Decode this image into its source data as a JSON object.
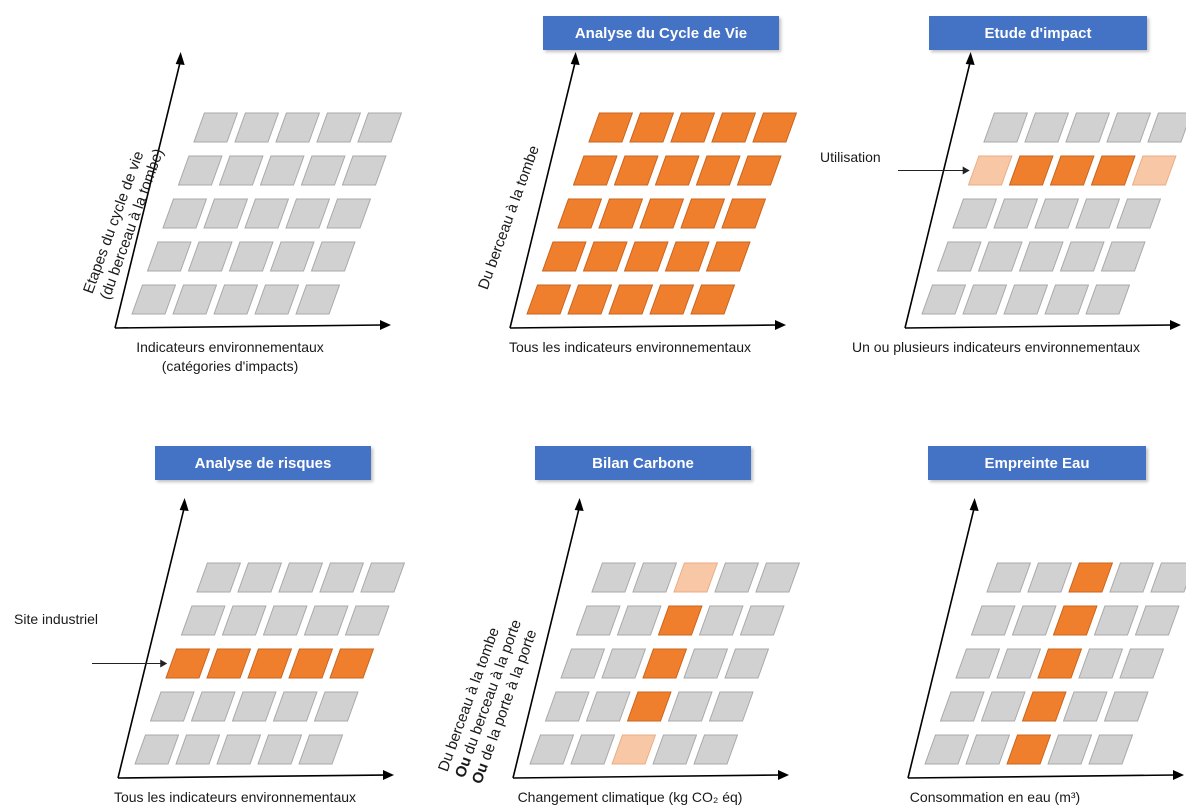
{
  "colors": {
    "gray_cell": "#d1d1d1",
    "gray_cell_edge": "#a9a9a9",
    "orange_cell": "#f07f2d",
    "light_orange_cell": "#f8c8a6",
    "title_bg": "#4472c4",
    "axis": "#000000"
  },
  "panels": [
    {
      "id": "generic",
      "title": "",
      "ylabel_lines": [
        "Etapes du cycle de vie",
        "(du berceau à la tombe)"
      ],
      "xlabel_lines": [
        "Indicateurs environnementaux",
        "(catégories d'impacts)"
      ],
      "callout": "",
      "cells": [
        [
          "gray",
          "gray",
          "gray",
          "gray",
          "gray"
        ],
        [
          "gray",
          "gray",
          "gray",
          "gray",
          "gray"
        ],
        [
          "gray",
          "gray",
          "gray",
          "gray",
          "gray"
        ],
        [
          "gray",
          "gray",
          "gray",
          "gray",
          "gray"
        ],
        [
          "gray",
          "gray",
          "gray",
          "gray",
          "gray"
        ]
      ]
    },
    {
      "id": "acv",
      "title": "Analyse du Cycle de Vie",
      "ylabel_lines": [
        "Du berceau à la tombe"
      ],
      "xlabel_lines": [
        "Tous les indicateurs environnementaux"
      ],
      "callout": "",
      "cells": [
        [
          "orange",
          "orange",
          "orange",
          "orange",
          "orange"
        ],
        [
          "orange",
          "orange",
          "orange",
          "orange",
          "orange"
        ],
        [
          "orange",
          "orange",
          "orange",
          "orange",
          "orange"
        ],
        [
          "orange",
          "orange",
          "orange",
          "orange",
          "orange"
        ],
        [
          "orange",
          "orange",
          "orange",
          "orange",
          "orange"
        ]
      ]
    },
    {
      "id": "etude-impact",
      "title": "Etude d'impact",
      "ylabel_lines": [],
      "xlabel_lines": [
        "Un ou plusieurs indicateurs environnementaux"
      ],
      "callout": "Utilisation",
      "callout_row": 1,
      "cells": [
        [
          "gray",
          "gray",
          "gray",
          "gray",
          "gray"
        ],
        [
          "light",
          "orange",
          "orange",
          "orange",
          "light"
        ],
        [
          "gray",
          "gray",
          "gray",
          "gray",
          "gray"
        ],
        [
          "gray",
          "gray",
          "gray",
          "gray",
          "gray"
        ],
        [
          "gray",
          "gray",
          "gray",
          "gray",
          "gray"
        ]
      ]
    },
    {
      "id": "analyse-risques",
      "title": "Analyse de risques",
      "ylabel_lines": [],
      "xlabel_lines": [
        "Tous les indicateurs environnementaux"
      ],
      "callout": "Site industriel",
      "callout_row": 2,
      "cells": [
        [
          "gray",
          "gray",
          "gray",
          "gray",
          "gray"
        ],
        [
          "gray",
          "gray",
          "gray",
          "gray",
          "gray"
        ],
        [
          "orange",
          "orange",
          "orange",
          "orange",
          "orange"
        ],
        [
          "gray",
          "gray",
          "gray",
          "gray",
          "gray"
        ],
        [
          "gray",
          "gray",
          "gray",
          "gray",
          "gray"
        ]
      ]
    },
    {
      "id": "bilan-carbone",
      "title": "Bilan Carbone",
      "ylabel_lines": [
        "Du berceau à la tombe",
        "Ou|du berceau à la porte",
        "Ou|de la porte à la porte"
      ],
      "xlabel_lines": [
        "Changement climatique (kg CO₂ éq)"
      ],
      "callout": "",
      "cells": [
        [
          "gray",
          "gray",
          "light",
          "gray",
          "gray"
        ],
        [
          "gray",
          "gray",
          "orange",
          "gray",
          "gray"
        ],
        [
          "gray",
          "gray",
          "orange",
          "gray",
          "gray"
        ],
        [
          "gray",
          "gray",
          "orange",
          "gray",
          "gray"
        ],
        [
          "gray",
          "gray",
          "light",
          "gray",
          "gray"
        ]
      ]
    },
    {
      "id": "empreinte-eau",
      "title": "Empreinte Eau",
      "ylabel_lines": [],
      "xlabel_lines": [
        "Consommation en eau (m³)"
      ],
      "callout": "",
      "cells": [
        [
          "gray",
          "gray",
          "orange",
          "gray",
          "gray"
        ],
        [
          "gray",
          "gray",
          "orange",
          "gray",
          "gray"
        ],
        [
          "gray",
          "gray",
          "orange",
          "gray",
          "gray"
        ],
        [
          "gray",
          "gray",
          "orange",
          "gray",
          "gray"
        ],
        [
          "gray",
          "gray",
          "orange",
          "gray",
          "gray"
        ]
      ]
    }
  ]
}
